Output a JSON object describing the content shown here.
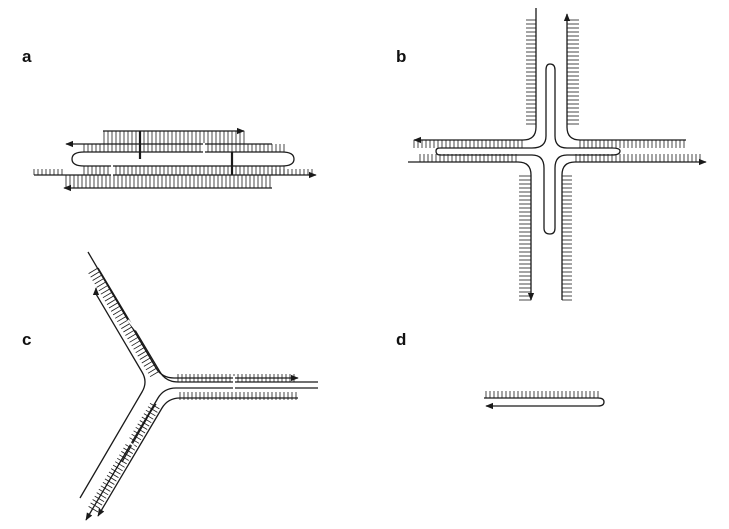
{
  "figure": {
    "panels": [
      {
        "id": "a",
        "label": "a"
      },
      {
        "id": "b",
        "label": "b"
      },
      {
        "id": "c",
        "label": "c"
      },
      {
        "id": "d",
        "label": "d"
      }
    ]
  },
  "colors": {
    "ink": "#1a1a1a",
    "background": "#ffffff"
  }
}
